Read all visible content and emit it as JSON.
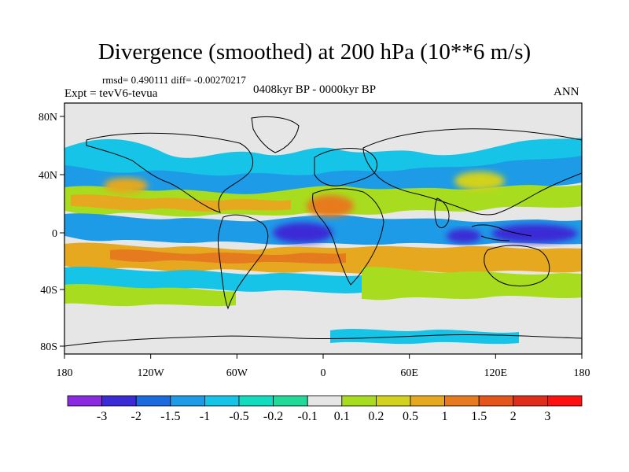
{
  "title": "Divergence (smoothed) at 200 hPa (10**6 m/s)",
  "stats": "rmsd= 0.490111 diff= -0.00270217",
  "experiment": "Expt = tevV6-tevua",
  "period": "0408kyr BP - 0000kyr BP",
  "season": "ANN",
  "lat_ticks": [
    "80N",
    "40N",
    "0",
    "40S",
    "80S"
  ],
  "lon_ticks": [
    "180",
    "120W",
    "60W",
    "0",
    "60E",
    "120E",
    "180"
  ],
  "colorbar": {
    "labels": [
      "-3",
      "-2",
      "-1.5",
      "-1",
      "-0.5",
      "-0.2",
      "-0.1",
      "0.1",
      "0.2",
      "0.5",
      "1",
      "1.5",
      "2",
      "3"
    ],
    "colors": [
      "#8a2be2",
      "#3a2bd6",
      "#1c6ae0",
      "#1e9be6",
      "#15c4e6",
      "#12dcc0",
      "#22d99a",
      "#e6e6e6",
      "#a8dc1e",
      "#d2d21e",
      "#e6a81e",
      "#e67a1e",
      "#e5541b",
      "#e02c1a",
      "#ff1010"
    ]
  },
  "colors": {
    "ocean_background": "#e6e6e6",
    "coastline": "#000000"
  }
}
